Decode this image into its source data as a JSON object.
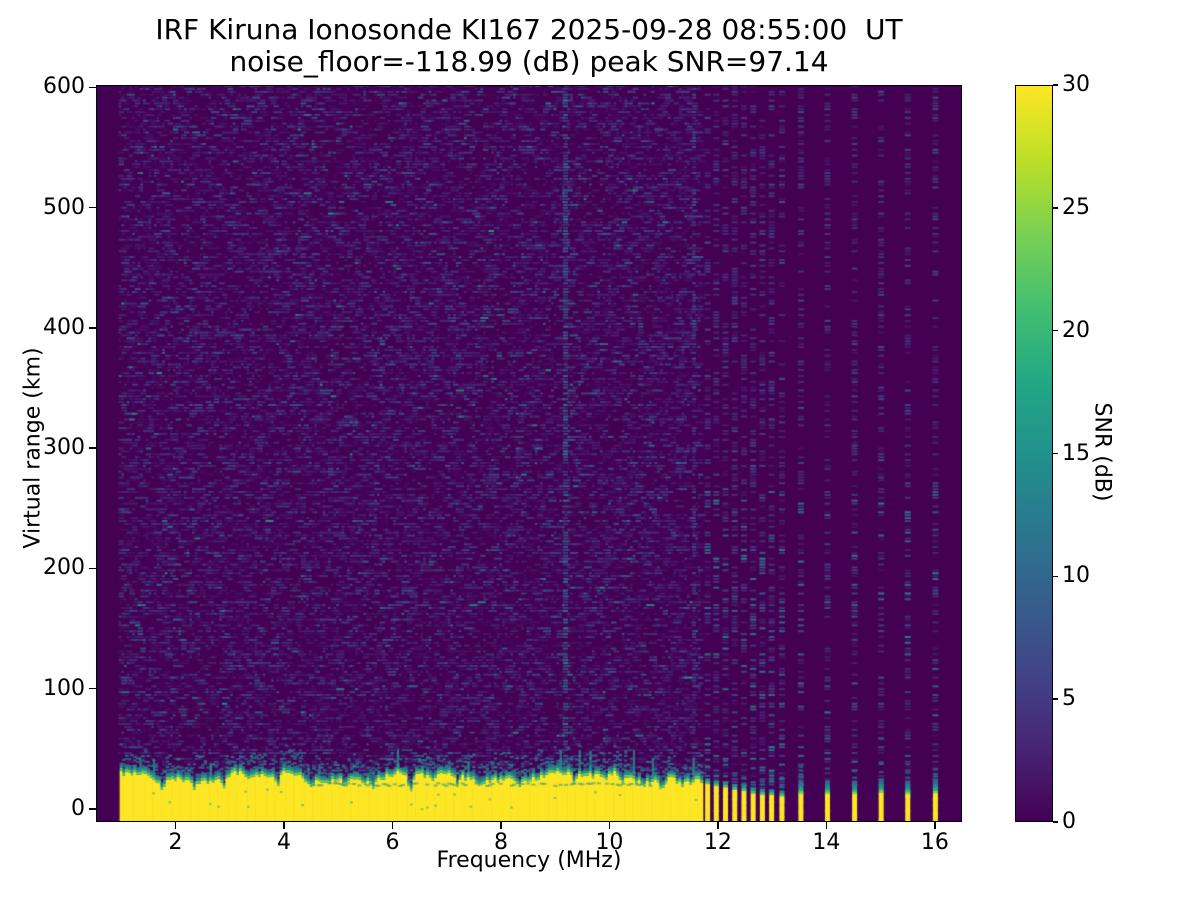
{
  "chart_data": {
    "type": "heatmap",
    "title": "IRF Kiruna Ionosonde KI167 2025-09-28 08:55:00  UT",
    "subtitle": "noise_floor=-118.99 (dB) peak SNR=97.14",
    "station": "KI167",
    "timestamp_ut": "2025-09-28 08:55:00",
    "noise_floor_db": -118.99,
    "peak_snr_db": 97.14,
    "xlabel": "Frequency (MHz)",
    "ylabel": "Virtual range (km)",
    "x_range_mhz": [
      0.534,
      16.5
    ],
    "y_range_km": [
      -11,
      602
    ],
    "x_ticks": [
      2,
      4,
      6,
      8,
      10,
      12,
      14,
      16
    ],
    "y_ticks": [
      0,
      100,
      200,
      300,
      400,
      500,
      600
    ],
    "colorbar": {
      "label": "SNR (dB)",
      "min": 0,
      "max": 30,
      "ticks": [
        0,
        5,
        10,
        15,
        20,
        25,
        30
      ],
      "colormap": "viridis"
    },
    "viridis_stops": [
      [
        0,
        "#440154"
      ],
      [
        0.1,
        "#482475"
      ],
      [
        0.2,
        "#414487"
      ],
      [
        0.3,
        "#355f8d"
      ],
      [
        0.4,
        "#2a788e"
      ],
      [
        0.5,
        "#21918c"
      ],
      [
        0.6,
        "#22a884"
      ],
      [
        0.7,
        "#44bf70"
      ],
      [
        0.8,
        "#7ad151"
      ],
      [
        0.9,
        "#bddf26"
      ],
      [
        1,
        "#fde725"
      ]
    ],
    "features": {
      "seed": 167,
      "sweep_start_mhz": 0.95,
      "continuous_echo_band": {
        "f_start_mhz": 0.97,
        "f_end_mhz": 11.68,
        "top_km_mean": 26,
        "top_km_min": 8,
        "top_km_max": 34
      },
      "band_dips": [
        [
          1.75,
          6,
          0.05
        ],
        [
          2.33,
          5,
          0.05
        ],
        [
          2.87,
          9,
          0.06
        ],
        [
          3.3,
          6,
          0.05
        ],
        [
          3.87,
          11,
          0.05
        ],
        [
          4.45,
          5,
          0.05
        ],
        [
          5.1,
          6,
          0.05
        ],
        [
          5.62,
          7,
          0.05
        ],
        [
          6.3,
          14,
          0.07
        ],
        [
          6.75,
          6,
          0.04
        ],
        [
          7.18,
          9,
          0.05
        ],
        [
          7.6,
          6,
          0.04
        ],
        [
          8.3,
          5,
          0.04
        ],
        [
          9.33,
          7,
          0.05
        ],
        [
          9.9,
          5,
          0.04
        ],
        [
          10.2,
          7,
          0.05
        ],
        [
          10.6,
          5,
          0.04
        ],
        [
          10.95,
          8,
          0.05
        ],
        [
          11.3,
          5,
          0.04
        ]
      ],
      "band_bumps": [
        [
          1.45,
          5,
          0.15
        ],
        [
          8.6,
          3,
          0.2
        ]
      ],
      "interference_line_mhz": 9.19,
      "secondary_interference_mhz": 11.56,
      "horizontal_streak": {
        "f_start_mhz": 4.5,
        "f_end_mhz": 11.0,
        "km": 21
      },
      "dense_stripes_mhz": [
        11.81,
        11.97,
        12.14,
        12.31,
        12.48,
        12.65,
        12.82,
        12.99,
        13.18
      ],
      "dense_stripe_top_km": [
        21,
        19,
        18,
        17,
        15,
        14,
        13,
        12,
        11
      ],
      "sparse_stripes_mhz": [
        13.53,
        14.02,
        14.52,
        15.01,
        15.5,
        16.01
      ],
      "sparse_stripe_top_km": [
        13,
        12,
        12,
        13,
        12,
        14
      ]
    }
  }
}
